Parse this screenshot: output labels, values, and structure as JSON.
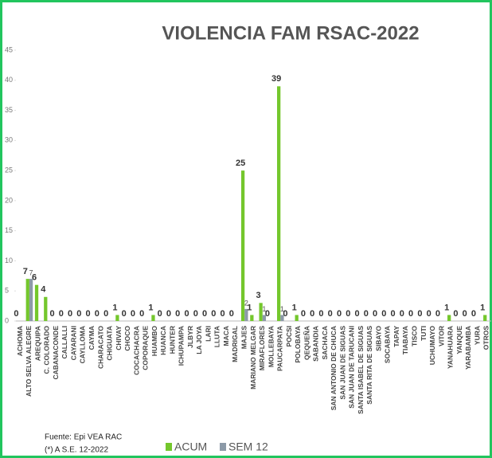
{
  "chart_data": {
    "type": "bar",
    "title": "VIOLENCIA FAM RSAC-2022",
    "categories": [
      "ACHOMA",
      "ALTO SELVA ALEGRE",
      "AREQUIPA",
      "C. COLORADO",
      "CABANACONDE",
      "CALLALLI",
      "CAYARANI",
      "CAYLLOMA",
      "CAYMA",
      "CHARACATO",
      "CHIGUATA",
      "CHIVAY",
      "CHOCO",
      "COCACHACRA",
      "COPORAQUE",
      "HUAMBO",
      "HUANCA",
      "HUNTER",
      "ICHUPAMPA",
      "JLBYR",
      "LA JOYA",
      "LARI",
      "LLUTA",
      "MACA",
      "MADRIGAL",
      "MAJES",
      "MARIANO MELGAR",
      "MIRAFLORES",
      "MOLLEBAYA",
      "PAUCARPATA",
      "POCSI",
      "POLOBAYA",
      "QEQUEÑA",
      "SABANDIA",
      "SACHACA",
      "SAN ANTONIO DE CHUCA",
      "SAN JUAN DE SIGUAS",
      "SAN JUAN DE TARUCANI",
      "SANTA ISABEL DE SIGUAS",
      "SANTA RITA DE SIGUAS",
      "SIBAYO",
      "SOCABAYA",
      "TAPAY",
      "TIABAYA",
      "TISCO",
      "TUTI",
      "UCHUMAYO",
      "VITOR",
      "YANAHUARA",
      "YANQUE",
      "YARABAMBA",
      "YURA",
      "OTROS"
    ],
    "series": [
      {
        "name": "ACUM",
        "color": "#74c72c",
        "values": [
          0,
          7,
          6,
          4,
          0,
          0,
          0,
          0,
          0,
          0,
          0,
          1,
          0,
          0,
          0,
          1,
          0,
          0,
          0,
          0,
          0,
          0,
          0,
          0,
          0,
          25,
          1,
          3,
          0,
          39,
          0,
          1,
          0,
          0,
          0,
          0,
          0,
          0,
          0,
          0,
          0,
          0,
          0,
          0,
          0,
          0,
          0,
          0,
          1,
          0,
          0,
          0,
          1
        ]
      },
      {
        "name": "SEM 12",
        "color": "#8c9aa8",
        "values": [
          0,
          7,
          0,
          0,
          0,
          0,
          0,
          0,
          0,
          0,
          0,
          0,
          0,
          0,
          0,
          0,
          0,
          0,
          0,
          0,
          0,
          0,
          0,
          0,
          0,
          2,
          0,
          1,
          0,
          1,
          0,
          0,
          0,
          0,
          0,
          0,
          0,
          0,
          0,
          0,
          0,
          0,
          0,
          0,
          0,
          0,
          0,
          0,
          0,
          0,
          0,
          0,
          0
        ],
        "value_labels": [
          null,
          "7",
          null,
          null,
          null,
          null,
          null,
          null,
          null,
          null,
          null,
          null,
          null,
          null,
          null,
          null,
          null,
          null,
          null,
          null,
          null,
          null,
          null,
          null,
          null,
          "2",
          null,
          "1",
          null,
          "1",
          null,
          null,
          null,
          null,
          null,
          null,
          null,
          null,
          null,
          null,
          null,
          null,
          null,
          null,
          null,
          null,
          null,
          null,
          null,
          null,
          null,
          null,
          null
        ]
      }
    ],
    "ylim": [
      0,
      45
    ],
    "yticks": [
      0,
      5,
      10,
      15,
      20,
      25,
      30,
      35,
      40,
      45
    ],
    "source": "Fuente:  Epi VEA RAC",
    "note": "(*) A S.E. 12-2022"
  }
}
